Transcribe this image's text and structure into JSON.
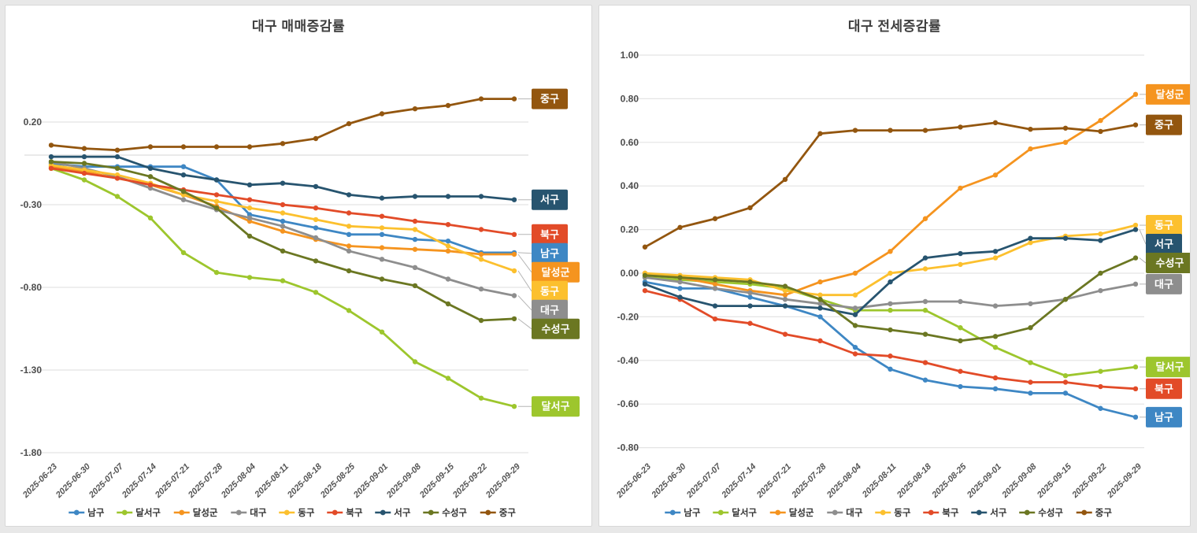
{
  "page": {
    "background_color": "#e8e8e8",
    "panel_color": "#ffffff",
    "panel_border_color": "#d8d8d8"
  },
  "chart_data": [
    {
      "type": "line",
      "title": "대구 매매증감률",
      "legend_position": "bottom",
      "grid": true,
      "categories": [
        "2025-06-23",
        "2025-06-30",
        "2025-07-07",
        "2025-07-14",
        "2025-07-21",
        "2025-07-28",
        "2025-08-04",
        "2025-08-11",
        "2025-08-18",
        "2025-08-25",
        "2025-09-01",
        "2025-09-08",
        "2025-09-15",
        "2025-09-22",
        "2025-09-29"
      ],
      "y_ticks": [
        "0.20",
        "-0.30",
        "-0.80",
        "-1.30",
        "-1.80"
      ],
      "ylim": [
        -1.95,
        0.45
      ],
      "series": [
        {
          "name": "남구",
          "color": "#3e87c4",
          "values": [
            -0.05,
            -0.07,
            -0.07,
            -0.07,
            -0.07,
            -0.15,
            -0.36,
            -0.4,
            -0.44,
            -0.48,
            -0.48,
            -0.51,
            -0.52,
            -0.59,
            -0.59
          ]
        },
        {
          "name": "달서구",
          "color": "#9dc62d",
          "values": [
            -0.08,
            -0.15,
            -0.25,
            -0.38,
            -0.59,
            -0.71,
            -0.74,
            -0.76,
            -0.83,
            -0.94,
            -1.07,
            -1.25,
            -1.35,
            -1.47,
            -1.52
          ]
        },
        {
          "name": "달성군",
          "color": "#f5941f",
          "values": [
            -0.07,
            -0.1,
            -0.14,
            -0.18,
            -0.24,
            -0.31,
            -0.4,
            -0.46,
            -0.51,
            -0.55,
            -0.56,
            -0.57,
            -0.58,
            -0.6,
            -0.6
          ]
        },
        {
          "name": "대구",
          "color": "#8e8e8e",
          "values": [
            -0.04,
            -0.08,
            -0.13,
            -0.2,
            -0.27,
            -0.33,
            -0.38,
            -0.43,
            -0.5,
            -0.58,
            -0.63,
            -0.68,
            -0.75,
            -0.81,
            -0.85
          ]
        },
        {
          "name": "동구",
          "color": "#fcc02e",
          "values": [
            -0.06,
            -0.09,
            -0.12,
            -0.17,
            -0.24,
            -0.28,
            -0.32,
            -0.35,
            -0.39,
            -0.43,
            -0.44,
            -0.45,
            -0.55,
            -0.63,
            -0.7
          ]
        },
        {
          "name": "북구",
          "color": "#e24b28",
          "values": [
            -0.08,
            -0.11,
            -0.14,
            -0.18,
            -0.21,
            -0.24,
            -0.27,
            -0.3,
            -0.32,
            -0.35,
            -0.37,
            -0.4,
            -0.42,
            -0.45,
            -0.48
          ]
        },
        {
          "name": "서구",
          "color": "#27546f",
          "values": [
            -0.01,
            -0.01,
            -0.01,
            -0.08,
            -0.12,
            -0.15,
            -0.18,
            -0.17,
            -0.19,
            -0.24,
            -0.26,
            -0.25,
            -0.25,
            -0.25,
            -0.27
          ]
        },
        {
          "name": "수성구",
          "color": "#6b7722",
          "values": [
            -0.04,
            -0.05,
            -0.08,
            -0.13,
            -0.22,
            -0.32,
            -0.49,
            -0.58,
            -0.64,
            -0.7,
            -0.75,
            -0.79,
            -0.9,
            -1.0,
            -0.99
          ]
        },
        {
          "name": "중구",
          "color": "#93560f",
          "values": [
            0.06,
            0.04,
            0.03,
            0.05,
            0.05,
            0.05,
            0.05,
            0.07,
            0.1,
            0.19,
            0.25,
            0.28,
            0.3,
            0.34,
            0.34
          ]
        }
      ]
    },
    {
      "type": "line",
      "title": "대구 전세증감률",
      "legend_position": "bottom",
      "grid": true,
      "categories": [
        "2025-06-23",
        "2025-06-30",
        "2025-07-07",
        "2025-07-14",
        "2025-07-21",
        "2025-07-28",
        "2025-08-04",
        "2025-08-11",
        "2025-08-18",
        "2025-08-25",
        "2025-09-01",
        "2025-09-08",
        "2025-09-15",
        "2025-09-22",
        "2025-09-29"
      ],
      "y_ticks": [
        "1.00",
        "0.80",
        "0.60",
        "0.40",
        "0.20",
        "0.00",
        "-0.20",
        "-0.40",
        "-0.60",
        "-0.80"
      ],
      "ylim": [
        -0.88,
        1.08
      ],
      "series": [
        {
          "name": "남구",
          "color": "#3e87c4",
          "values": [
            -0.04,
            -0.07,
            -0.07,
            -0.11,
            -0.15,
            -0.2,
            -0.34,
            -0.44,
            -0.49,
            -0.52,
            -0.53,
            -0.55,
            -0.55,
            -0.62,
            -0.66
          ]
        },
        {
          "name": "달서구",
          "color": "#9dc62d",
          "values": [
            -0.02,
            -0.03,
            -0.04,
            -0.05,
            -0.07,
            -0.12,
            -0.17,
            -0.17,
            -0.17,
            -0.25,
            -0.34,
            -0.41,
            -0.47,
            -0.45,
            -0.43
          ]
        },
        {
          "name": "달성군",
          "color": "#f5941f",
          "values": [
            0.0,
            -0.02,
            -0.05,
            -0.08,
            -0.1,
            -0.04,
            0.0,
            0.1,
            0.25,
            0.39,
            0.45,
            0.57,
            0.6,
            0.7,
            0.82
          ]
        },
        {
          "name": "대구",
          "color": "#8e8e8e",
          "values": [
            -0.02,
            -0.04,
            -0.07,
            -0.09,
            -0.12,
            -0.14,
            -0.16,
            -0.14,
            -0.13,
            -0.13,
            -0.15,
            -0.14,
            -0.12,
            -0.08,
            -0.05
          ]
        },
        {
          "name": "동구",
          "color": "#fcc02e",
          "values": [
            0.0,
            -0.01,
            -0.02,
            -0.03,
            -0.08,
            -0.1,
            -0.1,
            0.0,
            0.02,
            0.04,
            0.07,
            0.14,
            0.17,
            0.18,
            0.22
          ]
        },
        {
          "name": "북구",
          "color": "#e24b28",
          "values": [
            -0.08,
            -0.12,
            -0.21,
            -0.23,
            -0.28,
            -0.31,
            -0.37,
            -0.38,
            -0.41,
            -0.45,
            -0.48,
            -0.5,
            -0.5,
            -0.52,
            -0.53
          ]
        },
        {
          "name": "서구",
          "color": "#27546f",
          "values": [
            -0.05,
            -0.11,
            -0.15,
            -0.15,
            -0.15,
            -0.16,
            -0.19,
            -0.04,
            0.07,
            0.09,
            0.1,
            0.16,
            0.16,
            0.15,
            0.2
          ]
        },
        {
          "name": "수성구",
          "color": "#6b7722",
          "values": [
            -0.01,
            -0.02,
            -0.03,
            -0.04,
            -0.06,
            -0.12,
            -0.24,
            -0.26,
            -0.28,
            -0.31,
            -0.29,
            -0.25,
            -0.12,
            0.0,
            0.07
          ]
        },
        {
          "name": "중구",
          "color": "#93560f",
          "values": [
            0.12,
            0.21,
            0.25,
            0.3,
            0.43,
            0.64,
            0.655,
            0.655,
            0.655,
            0.67,
            0.69,
            0.66,
            0.665,
            0.65,
            0.68
          ]
        }
      ]
    }
  ]
}
